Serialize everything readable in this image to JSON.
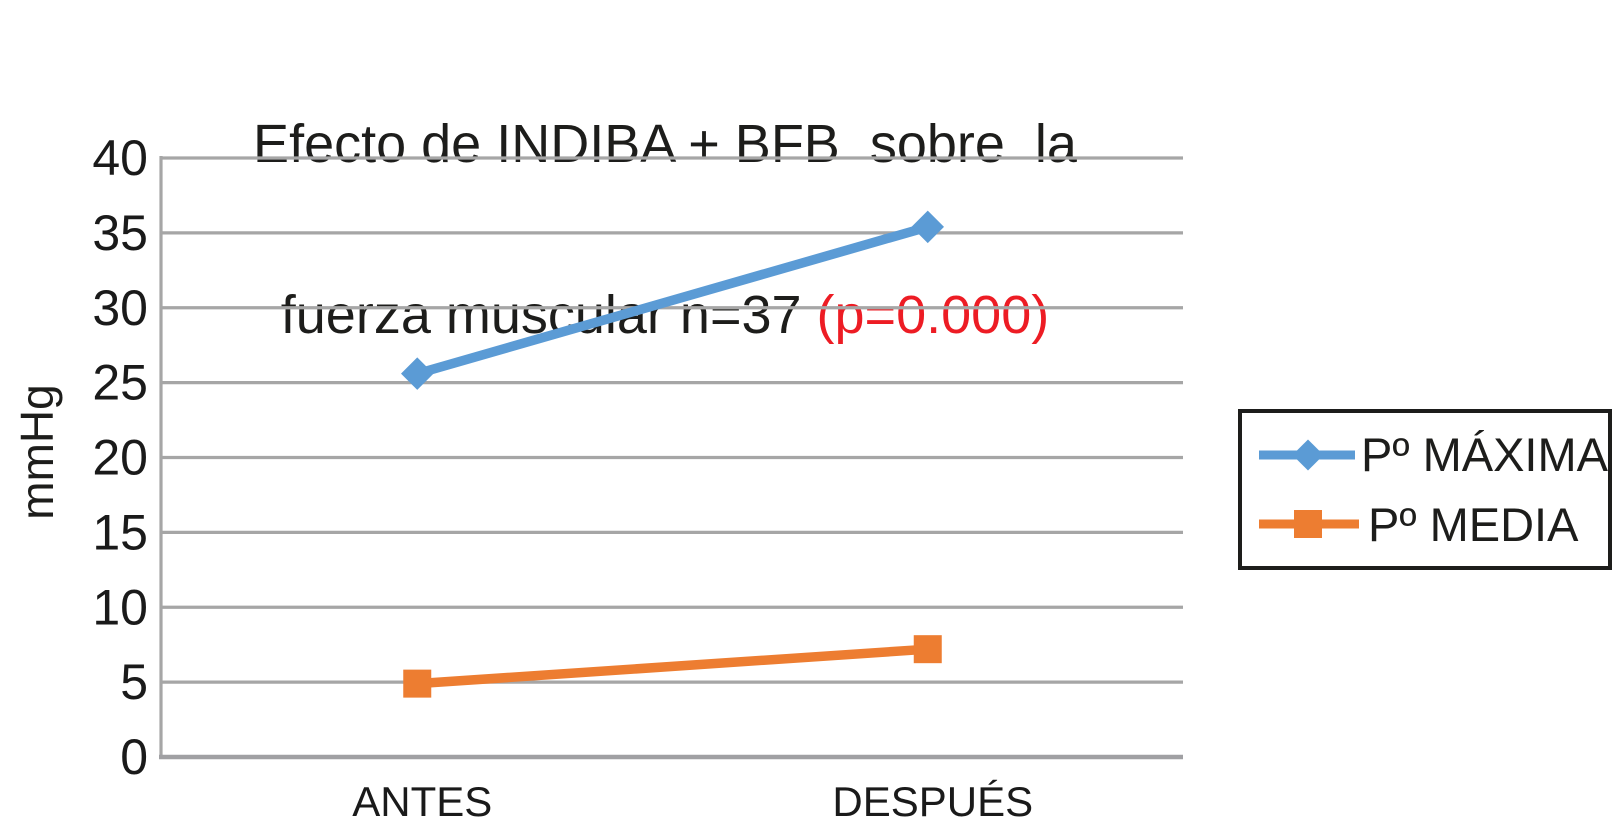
{
  "chart_data": {
    "type": "line",
    "title": "Efecto de INDIBA + BFB  sobre  la fuerza muscular n=37 (p=0.000)",
    "title_parts": {
      "line1": "Efecto de INDIBA + BFB  sobre  la",
      "line2_black": "fuerza muscular n=37 ",
      "line2_red": "(p=0.000)"
    },
    "xlabel": "",
    "ylabel": "mmHg",
    "categories": [
      "ANTES",
      "DESPUÉS"
    ],
    "series": [
      {
        "name": "Pº MÁXIMA",
        "values": [
          25.6,
          35.4
        ],
        "color": "#5b9bd5",
        "marker": "diamond"
      },
      {
        "name": "Pº MEDIA",
        "values": [
          4.9,
          7.2
        ],
        "color": "#ed7d31",
        "marker": "square"
      }
    ],
    "ylim": [
      0,
      40
    ],
    "ytick_step": 5,
    "yticks": [
      0,
      5,
      10,
      15,
      20,
      25,
      30,
      35,
      40
    ],
    "grid": true,
    "legend_position": "right"
  },
  "colors": {
    "grid": "#a6a6a6",
    "axis": "#a0a0a3",
    "title_text": "#1d1d1b",
    "p_value_red": "#ed1c24",
    "background": "#ffffff"
  }
}
